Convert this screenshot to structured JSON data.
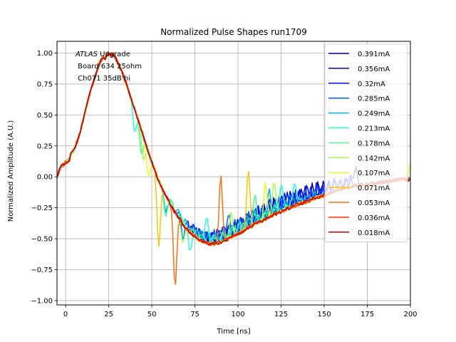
{
  "chart_data": {
    "type": "line",
    "title": "Normalized Pulse Shapes run1709",
    "xlabel": "Time [ns]",
    "ylabel": "Normalized Amplitude (A.U.)",
    "xlim": [
      -5,
      200
    ],
    "ylim": [
      -1.035,
      1.095
    ],
    "xticks": [
      0,
      25,
      50,
      75,
      100,
      125,
      150,
      175,
      200
    ],
    "xtick_labels": [
      "0",
      "25",
      "50",
      "75",
      "100",
      "125",
      "150",
      "175",
      "200"
    ],
    "yticks": [
      1.0,
      0.75,
      0.5,
      0.25,
      0.0,
      -0.25,
      -0.5,
      -0.75,
      -1.0
    ],
    "ytick_labels": [
      "1.00",
      "0.75",
      "0.50",
      "0.25",
      "0.00",
      "−0.25",
      "−0.50",
      "−0.75",
      "−1.00"
    ],
    "grid": true,
    "legend_position": "top-right",
    "annotation": {
      "line1_italic": "ATLAS",
      "line1_rest": " Upgrade",
      "line2": " Board 634 25ohm",
      "line3": " Ch071 35dB hi"
    },
    "base_curve": {
      "t": [
        -5,
        -3,
        -1,
        0,
        2,
        3,
        5,
        8,
        10,
        13,
        15,
        18,
        20,
        22,
        23,
        24,
        25,
        26,
        28,
        30,
        32,
        35,
        38,
        40,
        43,
        45,
        48,
        50,
        53,
        55,
        58,
        60,
        63,
        65,
        68,
        70,
        73,
        75,
        78,
        80,
        83,
        85,
        88,
        90,
        93,
        95,
        98,
        100,
        105,
        110,
        115,
        120,
        125,
        130,
        135,
        140,
        145,
        150,
        155,
        160,
        165,
        170,
        175,
        180,
        185,
        190,
        195,
        200
      ],
      "y": [
        0.0,
        0.08,
        0.1,
        0.12,
        0.13,
        0.18,
        0.22,
        0.34,
        0.45,
        0.62,
        0.72,
        0.85,
        0.93,
        0.97,
        0.96,
        0.99,
        1.0,
        0.98,
        0.99,
        0.93,
        0.87,
        0.76,
        0.63,
        0.55,
        0.42,
        0.33,
        0.2,
        0.12,
        0.0,
        -0.06,
        -0.15,
        -0.2,
        -0.28,
        -0.32,
        -0.38,
        -0.42,
        -0.46,
        -0.48,
        -0.51,
        -0.52,
        -0.54,
        -0.54,
        -0.54,
        -0.53,
        -0.51,
        -0.5,
        -0.47,
        -0.46,
        -0.42,
        -0.38,
        -0.35,
        -0.31,
        -0.28,
        -0.25,
        -0.22,
        -0.2,
        -0.17,
        -0.15,
        -0.12,
        -0.1,
        -0.08,
        -0.07,
        -0.06,
        -0.05,
        -0.04,
        -0.03,
        -0.02,
        -0.02
      ]
    },
    "series": [
      {
        "name": "0.391mA",
        "color": "#00008f",
        "ring": {
          "start": 75,
          "end": 150,
          "period": 3.0,
          "amp": 0.06
        },
        "spikes": []
      },
      {
        "name": "0.356mA",
        "color": "#0000c8",
        "ring": {
          "start": 72,
          "end": 170,
          "period": 3.2,
          "amp": 0.07
        },
        "spikes": [
          {
            "t": 168,
            "a": 0.1
          }
        ]
      },
      {
        "name": "0.32mA",
        "color": "#0010ff",
        "ring": {
          "start": 70,
          "end": 165,
          "period": 3.4,
          "amp": 0.07
        },
        "spikes": [
          {
            "t": 165,
            "a": 0.09
          }
        ]
      },
      {
        "name": "0.285mA",
        "color": "#0060ff",
        "ring": {
          "start": 65,
          "end": 150,
          "period": 4.0,
          "amp": 0.06
        },
        "spikes": [
          {
            "t": 68,
            "a": -0.12
          },
          {
            "t": 95,
            "a": 0.12
          }
        ]
      },
      {
        "name": "0.249mA",
        "color": "#00b0f0",
        "ring": {
          "start": 60,
          "end": 145,
          "period": 4.4,
          "amp": 0.05
        },
        "spikes": [
          {
            "t": 58,
            "a": -0.14
          },
          {
            "t": 118,
            "a": 0.14
          }
        ]
      },
      {
        "name": "0.213mA",
        "color": "#20ffd8",
        "ring": {
          "start": 60,
          "end": 140,
          "period": 5.0,
          "amp": 0.04
        },
        "spikes": [
          {
            "t": 40,
            "a": -0.18
          },
          {
            "t": 72,
            "a": -0.2
          },
          {
            "t": 82,
            "a": 0.16
          },
          {
            "t": 125,
            "a": 0.18
          },
          {
            "t": 133,
            "a": 0.16
          }
        ]
      },
      {
        "name": "0.178mA",
        "color": "#4bff8a",
        "ring": {
          "start": 60,
          "end": 130,
          "period": 6.0,
          "amp": 0.03
        },
        "spikes": [
          {
            "t": 44,
            "a": -0.2
          },
          {
            "t": 58,
            "a": -0.18
          },
          {
            "t": 110,
            "a": 0.18
          }
        ]
      },
      {
        "name": "0.142mA",
        "color": "#a0ff50",
        "ring": {
          "start": 0,
          "end": 0,
          "period": 1,
          "amp": 0
        },
        "spikes": [
          {
            "t": 45,
            "a": -0.2
          },
          {
            "t": 68,
            "a": -0.15
          },
          {
            "t": 96,
            "a": 0.2
          },
          {
            "t": 121,
            "a": 0.28
          }
        ]
      },
      {
        "name": "0.107mA",
        "color": "#e6ff1a",
        "ring": {
          "start": 0,
          "end": 0,
          "period": 1,
          "amp": 0
        },
        "spikes": [
          {
            "t": 48,
            "a": -0.2
          },
          {
            "t": 116,
            "a": 0.3
          },
          {
            "t": 200,
            "a": 0.12
          }
        ]
      },
      {
        "name": "0.071mA",
        "color": "#ffc400",
        "ring": {
          "start": 0,
          "end": 0,
          "period": 1,
          "amp": 0
        },
        "spikes": [
          {
            "t": 54,
            "a": -0.55
          },
          {
            "t": 106,
            "a": 0.47
          }
        ]
      },
      {
        "name": "0.053mA",
        "color": "#ff7010",
        "ring": {
          "start": 0,
          "end": 0,
          "period": 1,
          "amp": 0
        },
        "spikes": [
          {
            "t": 63.5,
            "a": -0.62
          },
          {
            "t": 90,
            "a": 0.54
          }
        ]
      },
      {
        "name": "0.036mA",
        "color": "#ff2a00",
        "ring": {
          "start": 0,
          "end": 0,
          "period": 1,
          "amp": 0
        },
        "spikes": []
      },
      {
        "name": "0.018mA",
        "color": "#c80000",
        "ring": {
          "start": 0,
          "end": 0,
          "period": 1,
          "amp": 0
        },
        "spikes": []
      }
    ]
  }
}
